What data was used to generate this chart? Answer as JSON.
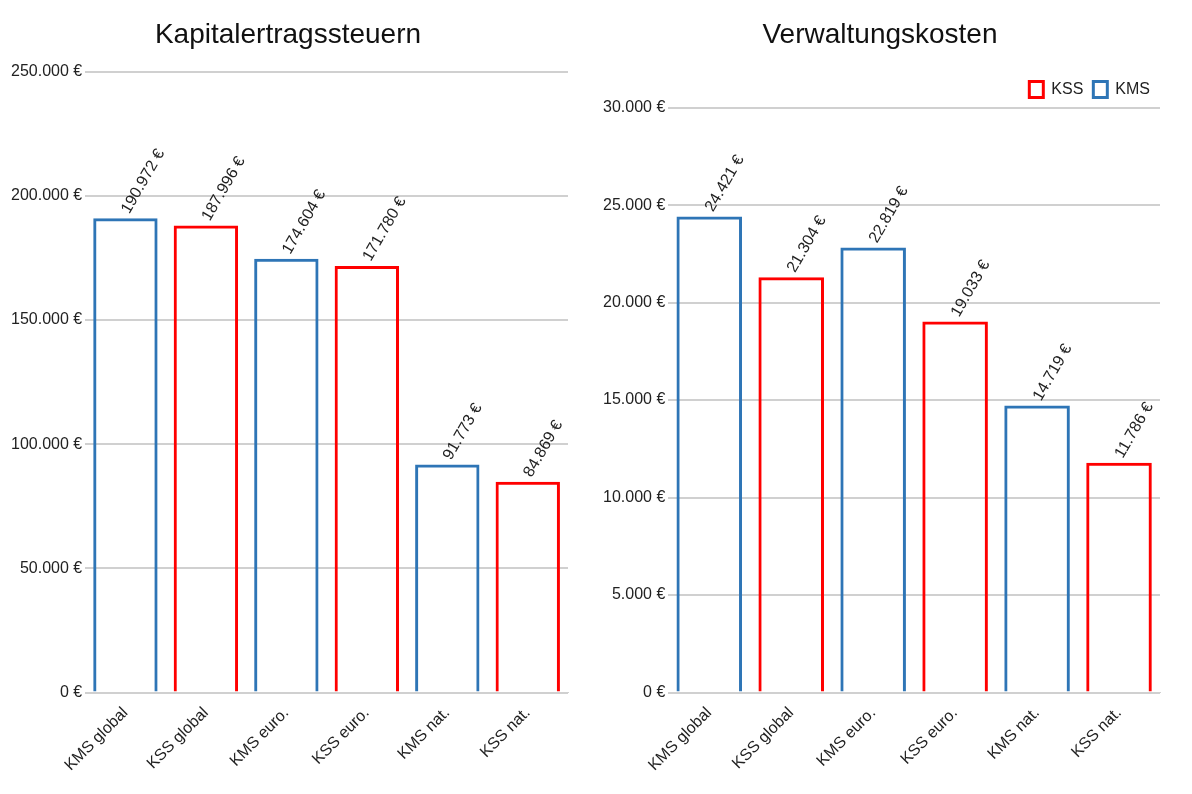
{
  "chart_data": [
    {
      "type": "bar",
      "title": "Kapitalertragssteuern",
      "categories": [
        "KMS global",
        "KSS global",
        "KMS euro.",
        "KSS euro.",
        "KMS nat.",
        "KSS nat."
      ],
      "series": [
        {
          "color": "#ff0000",
          "values": [
            null,
            187996,
            null,
            171780,
            null,
            84869
          ],
          "value_labels": [
            null,
            "187.996 €",
            null,
            "171.780 €",
            null,
            "84.869 €"
          ]
        },
        {
          "color": "#2e75b6",
          "values": [
            190972,
            null,
            174604,
            null,
            91773,
            null
          ],
          "value_labels": [
            "190.972 €",
            null,
            "174.604 €",
            null,
            "91.773 €",
            null
          ]
        }
      ],
      "ylim": [
        0,
        250000
      ],
      "yticks": [
        {
          "value": 0,
          "label": "0 €"
        },
        {
          "value": 50000,
          "label": "50.000 €"
        },
        {
          "value": 100000,
          "label": "100.000 €"
        },
        {
          "value": 150000,
          "label": "150.000 €"
        },
        {
          "value": 200000,
          "label": "200.000 €"
        },
        {
          "value": 250000,
          "label": "250.000 €"
        }
      ],
      "grid": "y",
      "legend": false
    },
    {
      "type": "bar",
      "title": "Verwaltungskosten",
      "categories": [
        "KMS global",
        "KSS global",
        "KMS euro.",
        "KSS euro.",
        "KMS nat.",
        "KSS nat."
      ],
      "series": [
        {
          "name": "KSS",
          "color": "#ff0000",
          "values": [
            null,
            21304,
            null,
            19033,
            null,
            11786
          ],
          "value_labels": [
            null,
            "21.304 €",
            null,
            "19.033 €",
            null,
            "11.786 €"
          ]
        },
        {
          "name": "KMS",
          "color": "#2e75b6",
          "values": [
            24421,
            null,
            22819,
            null,
            14719,
            null
          ],
          "value_labels": [
            "24.421 €",
            null,
            "22.819 €",
            null,
            "14.719 €",
            null
          ]
        }
      ],
      "ylim": [
        0,
        30000
      ],
      "yticks": [
        {
          "value": 0,
          "label": "0 €"
        },
        {
          "value": 5000,
          "label": "5.000 €"
        },
        {
          "value": 10000,
          "label": "10.000 €"
        },
        {
          "value": 15000,
          "label": "15.000 €"
        },
        {
          "value": 20000,
          "label": "20.000 €"
        },
        {
          "value": 25000,
          "label": "25.000 €"
        },
        {
          "value": 30000,
          "label": "30.000 €"
        }
      ],
      "grid": "y",
      "legend": "top right"
    }
  ]
}
